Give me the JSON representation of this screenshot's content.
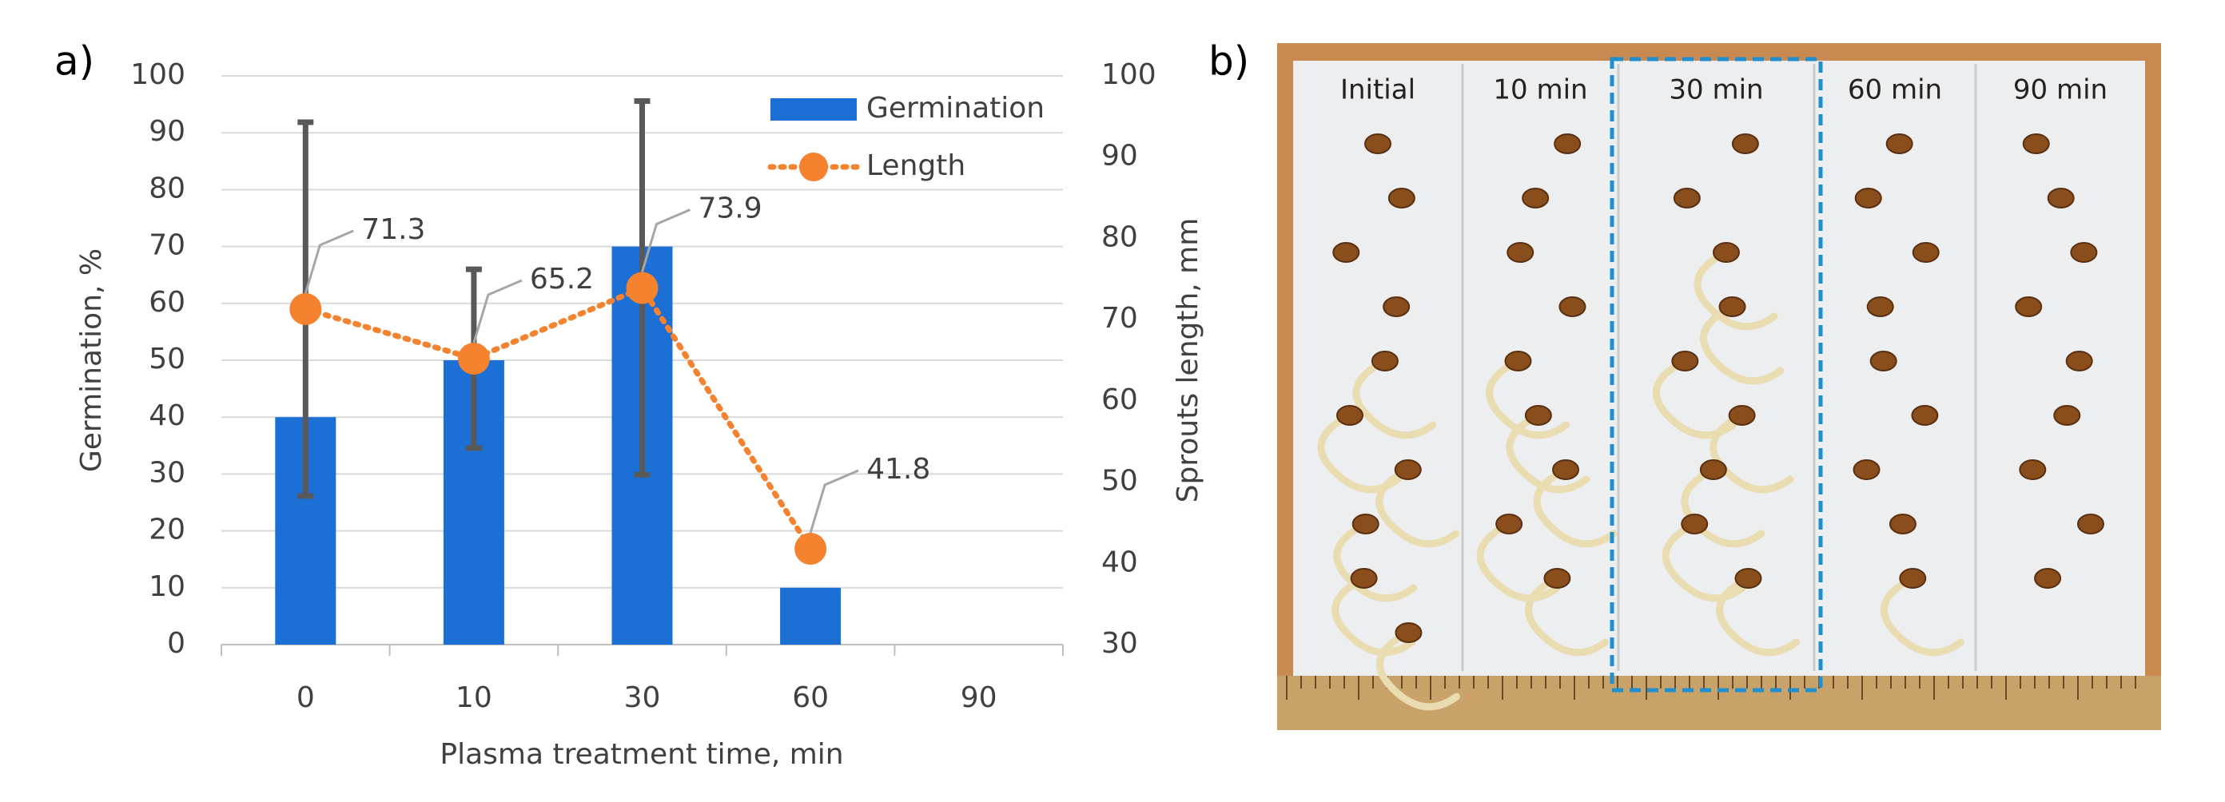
{
  "chart_data": {
    "type": "bar",
    "panel_label": "a)",
    "categories": [
      "0",
      "10",
      "30",
      "60",
      "90"
    ],
    "series": [
      {
        "name": "Germination",
        "type": "bar",
        "color": "#1c6fd4",
        "values": [
          40,
          50,
          70,
          10,
          0
        ]
      },
      {
        "name": "Length",
        "type": "line",
        "axis": "y2",
        "color": "#f4822f",
        "values": [
          71.3,
          65.2,
          73.9,
          41.8,
          null
        ],
        "errors": [
          23,
          11,
          23,
          null,
          null
        ],
        "error_color": "#595959"
      }
    ],
    "xlabel": "Plasma treatment time, min",
    "ylabel": "Germination, %",
    "y2label": "Sprouts length, mm",
    "ylim": [
      0,
      100
    ],
    "yticks": [
      0,
      10,
      20,
      30,
      40,
      50,
      60,
      70,
      80,
      90,
      100
    ],
    "y2lim": [
      30,
      100
    ],
    "y2ticks": [
      30,
      40,
      50,
      60,
      70,
      80,
      90,
      100
    ],
    "grid": true,
    "legend": "top-right"
  },
  "photo": {
    "panel_label": "b)",
    "columns": [
      "Initial",
      "10 min",
      "30 min",
      "60 min",
      "90 min"
    ],
    "highlighted": 2
  }
}
